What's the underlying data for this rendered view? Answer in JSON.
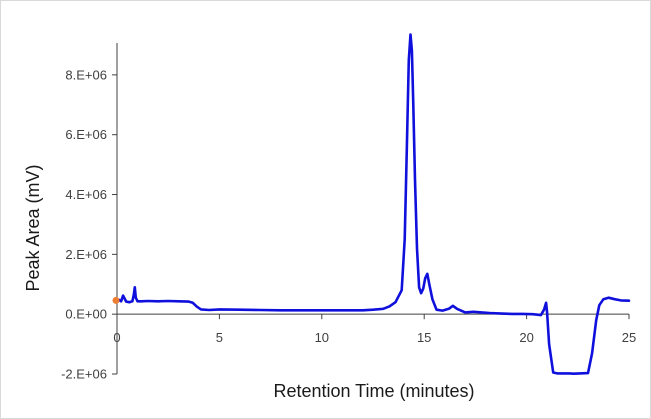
{
  "chart_data": {
    "type": "line",
    "title": "",
    "xlabel": "Retention Time (minutes)",
    "ylabel": "Peak Area (mV)",
    "xlim": [
      0,
      25
    ],
    "ylim": [
      -2000000,
      9500000
    ],
    "x_ticks": [
      0,
      5,
      10,
      15,
      20,
      25
    ],
    "x_tick_labels": [
      "0",
      "5",
      "10",
      "15",
      "20",
      "25"
    ],
    "y_ticks": [
      -2000000,
      0,
      2000000,
      4000000,
      6000000,
      8000000
    ],
    "y_tick_labels": [
      "-2.E+06",
      "0.E+00",
      "2.E+06",
      "4.E+06",
      "6.E+06",
      "8.E+06"
    ],
    "grid": false,
    "series": [
      {
        "color": "#1010dd",
        "x": [
          0.0,
          0.1,
          0.2,
          0.3,
          0.45,
          0.6,
          0.75,
          0.82,
          0.87,
          0.92,
          1.0,
          1.2,
          1.5,
          2.0,
          2.5,
          3.0,
          3.5,
          3.7,
          3.9,
          4.1,
          4.5,
          5.0,
          6.0,
          7.0,
          8.0,
          9.0,
          10.0,
          11.0,
          12.0,
          12.5,
          13.0,
          13.3,
          13.6,
          13.9,
          14.05,
          14.15,
          14.25,
          14.33,
          14.4,
          14.47,
          14.55,
          14.65,
          14.75,
          14.85,
          14.95,
          15.05,
          15.15,
          15.25,
          15.4,
          15.6,
          15.9,
          16.2,
          16.4,
          16.6,
          17.0,
          17.4,
          17.8,
          18.2,
          18.8,
          19.3,
          19.8,
          20.3,
          20.7,
          20.85,
          20.95,
          21.0,
          21.1,
          21.3,
          21.5,
          21.7,
          21.9,
          22.1,
          22.3,
          22.6,
          23.0,
          23.2,
          23.4,
          23.55,
          23.75,
          24.0,
          24.3,
          24.6,
          25.0
        ],
        "y": [
          450000,
          480000,
          430000,
          620000,
          420000,
          400000,
          430000,
          650000,
          900000,
          550000,
          430000,
          430000,
          440000,
          430000,
          440000,
          430000,
          420000,
          380000,
          250000,
          160000,
          140000,
          160000,
          150000,
          140000,
          130000,
          130000,
          130000,
          130000,
          130000,
          150000,
          180000,
          260000,
          400000,
          800000,
          2500000,
          5500000,
          8500000,
          9350000,
          8800000,
          7000000,
          4500000,
          2200000,
          900000,
          700000,
          850000,
          1200000,
          1350000,
          1000000,
          500000,
          150000,
          120000,
          180000,
          280000,
          180000,
          60000,
          80000,
          60000,
          40000,
          20000,
          10000,
          10000,
          0,
          -30000,
          150000,
          380000,
          50000,
          -1000000,
          -1950000,
          -1980000,
          -1980000,
          -1980000,
          -1980000,
          -1990000,
          -1980000,
          -1970000,
          -1300000,
          -200000,
          300000,
          500000,
          550000,
          500000,
          460000,
          450000
        ]
      }
    ],
    "start_marker": {
      "x": 0.0,
      "y": 460000,
      "color": "#ed7d31"
    }
  }
}
